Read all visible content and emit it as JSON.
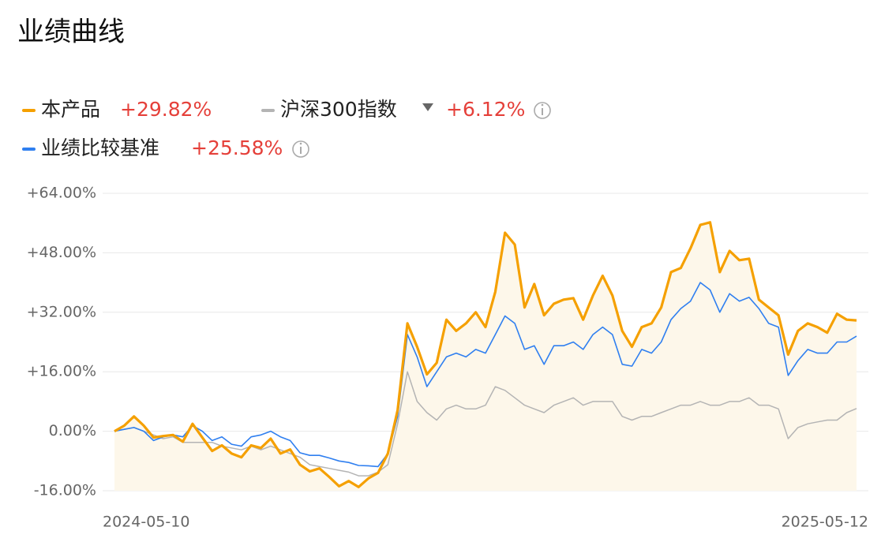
{
  "chart_data": {
    "type": "line",
    "title": "业绩曲线",
    "categories": [
      "2024-05-10",
      null,
      null,
      null,
      null,
      null,
      null,
      null,
      null,
      null,
      null,
      null,
      null,
      null,
      null,
      null,
      null,
      null,
      null,
      null,
      null,
      null,
      null,
      null,
      null,
      null,
      null,
      null,
      null,
      null,
      null,
      null,
      null,
      null,
      null,
      null,
      null,
      null,
      null,
      null,
      null,
      null,
      null,
      null,
      null,
      null,
      null,
      null,
      null,
      null,
      null,
      null,
      null,
      null,
      null,
      null,
      null,
      null,
      null,
      null,
      null,
      null,
      null,
      null,
      null,
      null,
      null,
      null,
      null,
      null,
      null,
      null,
      null,
      null,
      null,
      null,
      "2025-05-12"
    ],
    "series": [
      {
        "name": "本产品",
        "color": "#f5a000",
        "return": 29.82,
        "return_label": "+29.82%",
        "values": [
          0,
          1.5,
          4,
          1.5,
          -1.7,
          -1.3,
          -1,
          -2.8,
          2,
          -1.7,
          -5.3,
          -3.8,
          -6,
          -7,
          -3.8,
          -4.5,
          -2,
          -6,
          -4.9,
          -9,
          -10.8,
          -10,
          -12.3,
          -14.8,
          -13.4,
          -15,
          -12.7,
          -11.2,
          -6,
          5.7,
          29,
          22.7,
          15.3,
          18.4,
          30,
          27,
          29,
          32,
          28,
          37.5,
          53.4,
          50.2,
          33.3,
          39.6,
          31.2,
          34.3,
          35.4,
          35.8,
          30,
          36.5,
          41.8,
          36.5,
          27,
          22.7,
          28,
          29,
          33.3,
          42.8,
          43.9,
          49.2,
          55.5,
          56.2,
          42.8,
          48.5,
          46,
          46.4,
          35.4,
          33.3,
          31.2,
          20.6,
          27,
          29,
          28,
          26.5,
          31.6,
          30,
          29.82
        ]
      },
      {
        "name": "沪深300指数",
        "color": "#b4b4b4",
        "return": 6.12,
        "return_label": "+6.12%",
        "values": [
          0,
          0.5,
          1,
          0,
          -1,
          -2,
          -1.5,
          -3,
          -3,
          -3,
          -3,
          -4,
          -4.5,
          -5,
          -4,
          -5,
          -4,
          -5,
          -6,
          -7,
          -9,
          -9.5,
          -10,
          -10.5,
          -11,
          -12,
          -12,
          -11,
          -9,
          2,
          16,
          8,
          5,
          3,
          6,
          7,
          6,
          6,
          7,
          12,
          11,
          9,
          7,
          6,
          5,
          7,
          8,
          9,
          7,
          8,
          8,
          8,
          4,
          3,
          4,
          4,
          5,
          6,
          7,
          7,
          8,
          7,
          7,
          8,
          8,
          9,
          7,
          7,
          6,
          -2,
          1,
          2,
          2.5,
          3,
          3,
          5,
          6.12
        ]
      },
      {
        "name": "业绩比较基准",
        "color": "#2f7ff0",
        "return": 25.58,
        "return_label": "+25.58%",
        "values": [
          0,
          0.5,
          1,
          0,
          -2.5,
          -1.5,
          -1,
          -1.5,
          1.5,
          0,
          -2.5,
          -1.5,
          -3.5,
          -4,
          -1.5,
          -1,
          0,
          -1.5,
          -2.5,
          -5.8,
          -6.5,
          -6.5,
          -7.2,
          -8,
          -8.4,
          -9.2,
          -9.3,
          -9.5,
          -6,
          4,
          26,
          20,
          12,
          16,
          20,
          21,
          20,
          22,
          21,
          26,
          31,
          29,
          22,
          23,
          18,
          23,
          23,
          24,
          22,
          26,
          28,
          26,
          18,
          17.5,
          22,
          21,
          24,
          30,
          33,
          35,
          40,
          38,
          32,
          37,
          35,
          36,
          33,
          29,
          28,
          15,
          19,
          22,
          21,
          21,
          24,
          24,
          25.58
        ]
      }
    ],
    "ylim": [
      -16,
      64
    ],
    "yticks": [
      {
        "value": -16,
        "label": "-16.00%"
      },
      {
        "value": 0,
        "label": "0.00%"
      },
      {
        "value": 16,
        "label": "+16.00%"
      },
      {
        "value": 32,
        "label": "+32.00%"
      },
      {
        "value": 48,
        "label": "+48.00%"
      },
      {
        "value": 64,
        "label": "+64.00%"
      }
    ],
    "grid": true
  }
}
